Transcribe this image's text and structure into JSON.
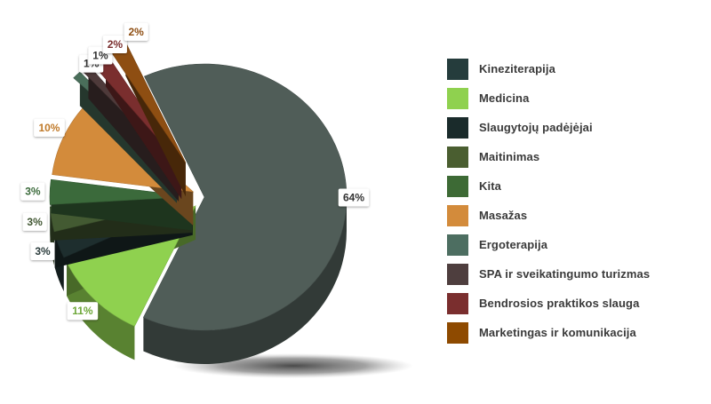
{
  "chart_data": {
    "type": "pie",
    "series": [
      {
        "name": "Kineziterapija",
        "value": 64,
        "label": "64%",
        "color": "#505d58"
      },
      {
        "name": "Medicina",
        "value": 11,
        "label": "11%",
        "color": "#8fd14f"
      },
      {
        "name": "Slaugytojų padėjėjai",
        "value": 3,
        "label": "3%",
        "color": "#1e2e2e"
      },
      {
        "name": "Maitinimas",
        "value": 3,
        "label": "3%",
        "color": "#435a32"
      },
      {
        "name": "Kita",
        "value": 3,
        "label": "3%",
        "color": "#3b6a3b"
      },
      {
        "name": "Masažas",
        "value": 10,
        "label": "10%",
        "color": "#d38b3b"
      },
      {
        "name": "Ergoterapija",
        "value": 1,
        "label": "1%",
        "color": "#4a6e5a"
      },
      {
        "name": "SPA ir sveikatingumo turizmas",
        "value": 1,
        "label": "1%",
        "color": "#4e3a3a"
      },
      {
        "name": "Bendrosios praktikos slauga",
        "value": 2,
        "label": "2%",
        "color": "#7a2e2e"
      },
      {
        "name": "Marketingas ir komunikacija",
        "value": 2,
        "label": "2%",
        "color": "#8e4e12"
      }
    ],
    "legend_placement": "right",
    "three_d": true,
    "label_colors": {
      "Kineziterapija": "#333333",
      "Medicina": "#6ea83a",
      "Slaugytojų padėjėjai": "#2b3c3c",
      "Maitinimas": "#3f5530",
      "Kita": "#3b6a3b",
      "Masažas": "#c07a2a",
      "Ergoterapija": "#333333",
      "SPA ir sveikatingumo turizmas": "#333333",
      "Bendrosios praktikos slauga": "#7a2e2e",
      "Marketingas ir komunikacija": "#8e4e12"
    }
  },
  "legend": {
    "items": [
      {
        "label": "Kineziterapija",
        "color": "#253c3c"
      },
      {
        "label": "Medicina",
        "color": "#8fd14f"
      },
      {
        "label": "Slaugytojų padėjėjai",
        "color": "#1a2b2b"
      },
      {
        "label": "Maitinimas",
        "color": "#4a5e30"
      },
      {
        "label": "Kita",
        "color": "#3d6a35"
      },
      {
        "label": "Masažas",
        "color": "#d38b3b"
      },
      {
        "label": "Ergoterapija",
        "color": "#4d6e61"
      },
      {
        "label": "SPA ir sveikatingumo turizmas",
        "color": "#4e3e3e"
      },
      {
        "label": "Bendrosios praktikos slauga",
        "color": "#7a2e2e"
      },
      {
        "label": "Marketingas ir komunikacija",
        "color": "#8e4a00"
      }
    ]
  }
}
